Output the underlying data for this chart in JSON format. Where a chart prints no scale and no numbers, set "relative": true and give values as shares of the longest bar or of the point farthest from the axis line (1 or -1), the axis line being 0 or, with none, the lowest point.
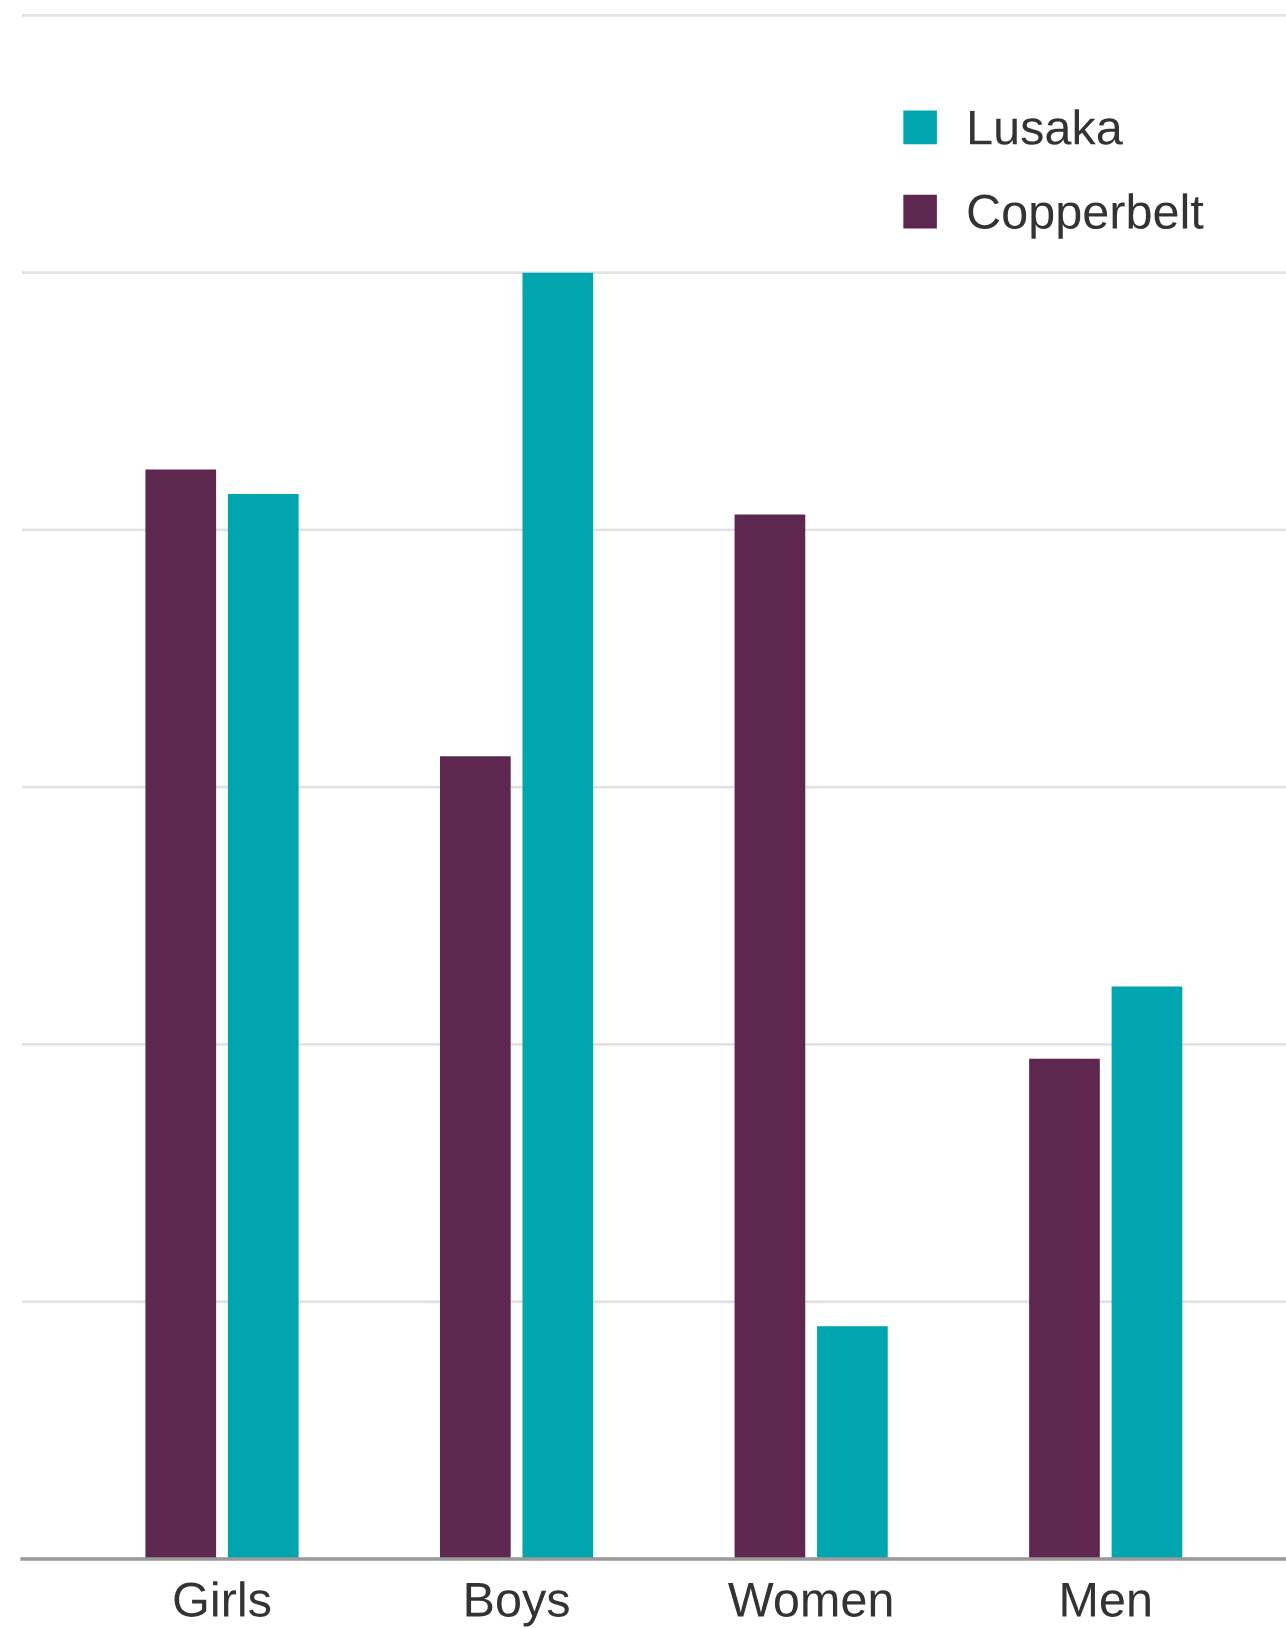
{
  "chart_data": {
    "type": "bar",
    "relative": true,
    "categories": [
      "Girls",
      "Boys",
      "Women",
      "Men"
    ],
    "series": [
      {
        "name": "Copperbelt",
        "color": "#5e2750",
        "values": [
          0.847,
          0.624,
          0.812,
          0.389
        ]
      },
      {
        "name": "Lusaka",
        "color": "#00a5b0",
        "values": [
          0.828,
          1,
          0.181,
          0.445
        ]
      }
    ],
    "grid": "y",
    "legend": "top right"
  }
}
